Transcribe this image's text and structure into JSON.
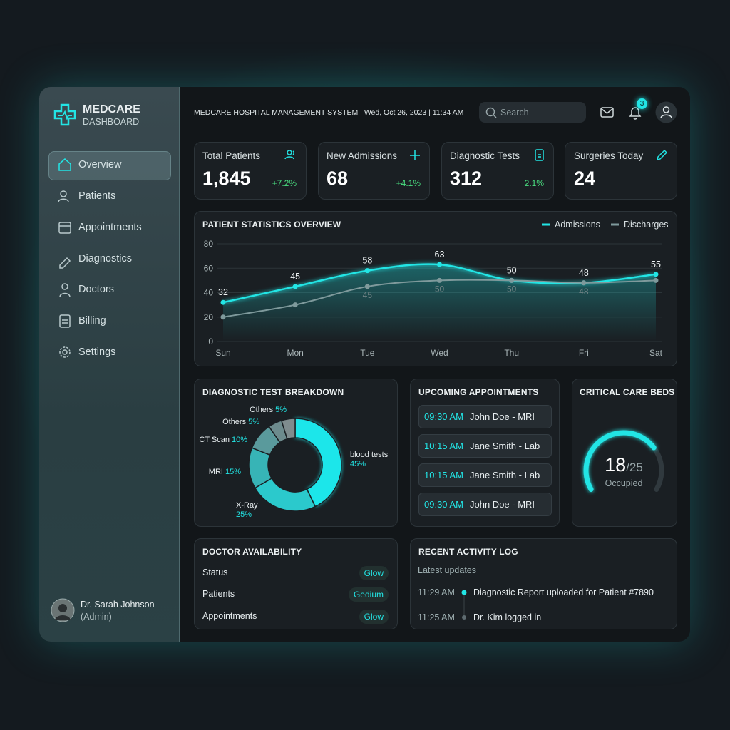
{
  "sidebar": {
    "brand": "MEDCARE",
    "brand_sub": "DASHBOARD",
    "nav": [
      "Overview",
      "Patients",
      "Appointments",
      "Diagnostics",
      "Doctors",
      "Billing",
      "Settings"
    ],
    "user": {
      "name": "Dr. Sarah Johnson",
      "role": "(Admin)"
    }
  },
  "header": {
    "title": "MEDCARE HOSPITAL MANAGEMENT SYSTEM | Wed, Oct 26, 2023 | 11:34 AM",
    "search_placeholder": "Search",
    "notifications": 3
  },
  "stats": [
    {
      "label": "Total Patients",
      "value": "1,845",
      "change": "+7.2%"
    },
    {
      "label": "New Admissions",
      "value": 68,
      "change": "+4.1%"
    },
    {
      "label": "Diagnostic Tests",
      "value": 312,
      "change": "2.1%"
    },
    {
      "label": "Surgeries Today",
      "value": 24
    }
  ],
  "chart_data": [
    {
      "type": "line",
      "title": "PATIENT STATISTICS OVERVIEW",
      "categories": [
        "Sun",
        "Mon",
        "Tue",
        "Wed",
        "Thu",
        "Fri",
        "Sat"
      ],
      "series": [
        {
          "name": "Admissions",
          "color": "#22e5e5",
          "values": [
            32,
            45,
            58,
            63,
            50,
            48,
            55
          ]
        },
        {
          "name": "Discharges",
          "color": "#7f9a9c",
          "values": [
            20,
            30,
            45,
            50,
            50,
            48,
            50
          ],
          "value_labels": [
            null,
            null,
            "45",
            "50",
            "50",
            "48",
            null
          ]
        }
      ],
      "ylim": [
        0,
        80
      ],
      "yticks": [
        0,
        20,
        40,
        60,
        80
      ],
      "grid": true
    },
    {
      "type": "pie",
      "title": "DIAGNOSTIC TEST BREAKDOWN",
      "categories": [
        "blood tests",
        "X-Ray",
        "MRI",
        "CT Scan",
        "Others",
        "Others"
      ],
      "values": [
        45,
        25,
        15,
        10,
        5,
        5
      ],
      "value_labels": [
        "45%",
        "25%",
        "15%",
        "10%",
        "5%",
        "5%"
      ],
      "colors": [
        "#1fe6ea",
        "#2bc9cc",
        "#37b4b6",
        "#5a9a9c",
        "#6d8b8d",
        "#7f8c8e"
      ]
    },
    {
      "type": "gauge",
      "title": "CRITICAL CARE BEDS",
      "value": 18,
      "max": {
        "value": 25,
        "label": "/25"
      },
      "label": "Occupied",
      "color": "#22e5e5"
    }
  ],
  "appointments": {
    "title": "UPCOMING APPOINTMENTS",
    "items": [
      {
        "time": "09:30 AM",
        "text": "John Doe - MRI"
      },
      {
        "time": "10:15 AM",
        "text": "Jane Smith - Lab"
      },
      {
        "time": "10:15 AM",
        "text": "Jane Smith - Lab"
      },
      {
        "time": "09:30 AM",
        "text": "John Doe - MRI"
      }
    ]
  },
  "doctor_availability": {
    "title": "DOCTOR AVAILABILITY",
    "rows": [
      {
        "label": "Status",
        "badge": "Glow"
      },
      {
        "label": "Patients",
        "badge": "Gedium"
      },
      {
        "label": "Appointments",
        "badge": "Glow"
      }
    ]
  },
  "activity_log": {
    "title": "RECENT ACTIVITY LOG",
    "subtitle": "Latest updates",
    "items": [
      {
        "time": "11:29 AM",
        "text": "Diagnostic Report uploaded for Patient #7890"
      },
      {
        "time": "11:25 AM",
        "text": "Dr. Kim logged in"
      }
    ]
  }
}
